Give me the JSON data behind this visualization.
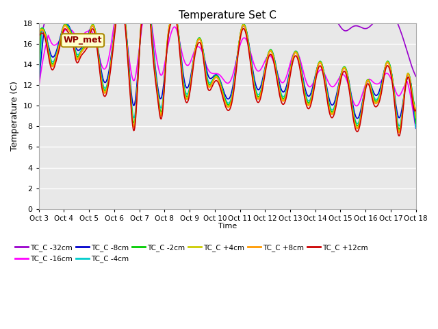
{
  "title": "Temperature Set C",
  "xlabel": "Time",
  "ylabel": "Temperature (C)",
  "ylim": [
    0,
    18
  ],
  "yticks": [
    0,
    2,
    4,
    6,
    8,
    10,
    12,
    14,
    16,
    18
  ],
  "x_labels": [
    "Oct 3",
    "Oct 4",
    "Oct 5",
    "Oct 6",
    "Oct 7",
    "Oct 8",
    "Oct 9",
    "Oct 10",
    "Oct 11",
    "Oct 12",
    "Oct 13",
    "Oct 14",
    "Oct 15",
    "Oct 16",
    "Oct 17",
    "Oct 18"
  ],
  "annotation_text": "WP_met",
  "background_color": "#ffffff",
  "plot_bg_color": "#e8e8e8",
  "series_colors": {
    "TC_C -32cm": "#9900cc",
    "TC_C -16cm": "#ff00ff",
    "TC_C -8cm": "#0000cc",
    "TC_C -4cm": "#00cccc",
    "TC_C -2cm": "#00cc00",
    "TC_C +4cm": "#cccc00",
    "TC_C +8cm": "#ff9900",
    "TC_C +12cm": "#cc0000"
  },
  "legend_order": [
    "TC_C -32cm",
    "TC_C -16cm",
    "TC_C -8cm",
    "TC_C -4cm",
    "TC_C -2cm",
    "TC_C +4cm",
    "TC_C +8cm",
    "TC_C +12cm"
  ]
}
